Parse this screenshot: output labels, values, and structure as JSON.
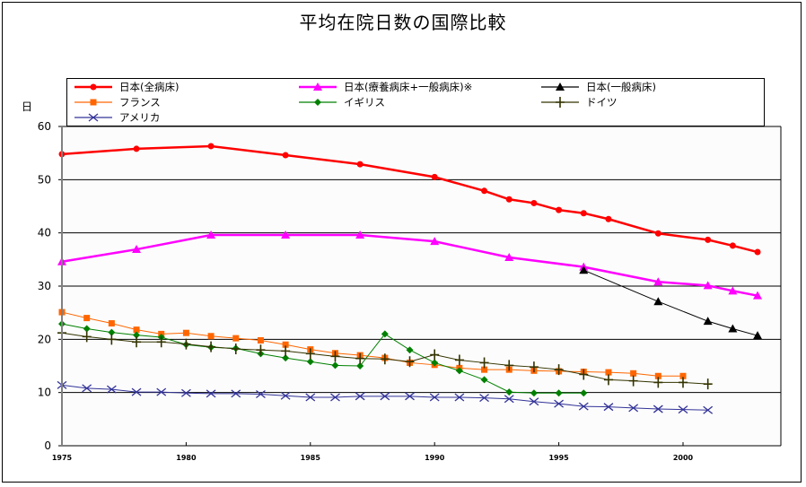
{
  "chart_data": {
    "type": "line",
    "title": "平均在院日数の国際比較",
    "ylabel": "日",
    "xlabel": "",
    "xlim": [
      1975,
      2004
    ],
    "ylim": [
      0,
      60
    ],
    "yticks": [
      0,
      10,
      20,
      30,
      40,
      50,
      60
    ],
    "xticks": [
      1975,
      1980,
      1985,
      1990,
      1995,
      2000
    ],
    "xtick_labels": [
      "1975",
      "1980",
      "1985",
      "1990",
      "1995",
      "2000"
    ],
    "ytick_labels": [
      "0",
      "10",
      "20",
      "30",
      "40",
      "50",
      "60"
    ],
    "grid": "horizontal",
    "legend_position": "top",
    "series": [
      {
        "name": "日本(全病床)",
        "color": "#ff0000",
        "marker": "circle",
        "line_width": "thick",
        "x": [
          1975,
          1978,
          1981,
          1984,
          1987,
          1990,
          1992,
          1993,
          1994,
          1995,
          1996,
          1997,
          1999,
          2001,
          2002,
          2003
        ],
        "y": [
          54.8,
          55.8,
          56.3,
          54.6,
          52.9,
          50.5,
          47.9,
          46.3,
          45.6,
          44.3,
          43.7,
          42.6,
          39.9,
          38.7,
          37.6,
          36.4
        ]
      },
      {
        "name": "日本(療養病床+一般病床)※",
        "color": "#ff00ff",
        "marker": "triangle",
        "line_width": "thick",
        "x": [
          1975,
          1978,
          1981,
          1984,
          1987,
          1990,
          1993,
          1996,
          1999,
          2001,
          2002,
          2003
        ],
        "y": [
          34.6,
          36.9,
          39.6,
          39.6,
          39.6,
          38.4,
          35.4,
          33.6,
          30.8,
          30.1,
          29.1,
          28.2
        ]
      },
      {
        "name": "日本(一般病床)",
        "color": "#000000",
        "marker": "triangle",
        "line_width": "thin",
        "x": [
          1996,
          1999,
          2001,
          2002,
          2003
        ],
        "y": [
          33.0,
          27.1,
          23.4,
          22.0,
          20.7
        ]
      },
      {
        "name": "フランス",
        "color": "#ff6600",
        "marker": "square",
        "line_width": "thin",
        "x": [
          1975,
          1976,
          1977,
          1978,
          1979,
          1980,
          1981,
          1982,
          1983,
          1984,
          1985,
          1986,
          1987,
          1988,
          1989,
          1990,
          1991,
          1992,
          1993,
          1994,
          1995,
          1996,
          1997,
          1998,
          1999,
          2000
        ],
        "y": [
          25.1,
          24.0,
          23.0,
          21.8,
          21.0,
          21.2,
          20.6,
          20.2,
          19.8,
          19.0,
          18.1,
          17.4,
          17.0,
          16.5,
          15.6,
          15.2,
          14.6,
          14.3,
          14.3,
          14.1,
          14.0,
          13.9,
          13.8,
          13.6,
          13.1,
          13.1
        ]
      },
      {
        "name": "イギリス",
        "color": "#008000",
        "marker": "diamond",
        "line_width": "thin",
        "x": [
          1975,
          1976,
          1977,
          1978,
          1979,
          1980,
          1981,
          1982,
          1983,
          1984,
          1985,
          1986,
          1987,
          1988,
          1989,
          1990,
          1991,
          1992,
          1993,
          1994,
          1995,
          1996
        ],
        "y": [
          22.9,
          22.0,
          21.3,
          20.8,
          20.4,
          19.0,
          18.5,
          18.3,
          17.3,
          16.5,
          15.8,
          15.1,
          15.0,
          21.0,
          18.0,
          15.6,
          14.1,
          12.4,
          10.1,
          9.9,
          9.9,
          9.9
        ]
      },
      {
        "name": "ドイツ",
        "color": "#333300",
        "marker": "plus",
        "line_width": "thin",
        "x": [
          1975,
          1976,
          1977,
          1978,
          1979,
          1980,
          1981,
          1982,
          1983,
          1984,
          1985,
          1986,
          1987,
          1988,
          1989,
          1990,
          1991,
          1992,
          1993,
          1994,
          1995,
          1996,
          1997,
          1998,
          1999,
          2000,
          2001
        ],
        "y": [
          21.2,
          20.5,
          20.0,
          19.5,
          19.5,
          19.1,
          18.6,
          18.2,
          18.0,
          17.8,
          17.3,
          16.8,
          16.4,
          16.3,
          15.8,
          17.1,
          16.1,
          15.6,
          15.1,
          14.8,
          14.3,
          13.4,
          12.4,
          12.2,
          11.9,
          11.9,
          11.6
        ]
      },
      {
        "name": "アメリカ",
        "color": "#333399",
        "marker": "x",
        "line_width": "thin",
        "x": [
          1975,
          1976,
          1977,
          1978,
          1979,
          1980,
          1981,
          1982,
          1983,
          1984,
          1985,
          1986,
          1987,
          1988,
          1989,
          1990,
          1991,
          1992,
          1993,
          1994,
          1995,
          1996,
          1997,
          1998,
          1999,
          2000,
          2001
        ],
        "y": [
          11.4,
          10.8,
          10.6,
          10.1,
          10.1,
          9.9,
          9.8,
          9.8,
          9.7,
          9.4,
          9.1,
          9.1,
          9.3,
          9.3,
          9.3,
          9.1,
          9.1,
          9.0,
          8.8,
          8.3,
          7.9,
          7.4,
          7.3,
          7.1,
          6.9,
          6.8,
          6.7
        ]
      }
    ]
  }
}
